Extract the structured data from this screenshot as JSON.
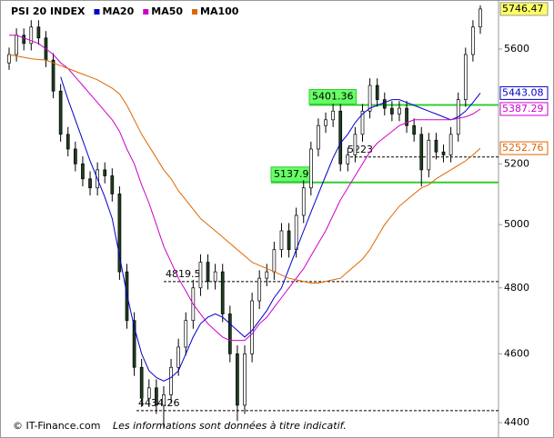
{
  "chart_data": {
    "type": "candlestick",
    "title": "PSI 20 INDEX",
    "footer": {
      "source": "© IT-Finance.com",
      "note": "Les informations sont données à titre indicatif."
    },
    "log_scale": true,
    "ylim": [
      4367,
      5763
    ],
    "yticks": [
      4400,
      4600,
      4800,
      5000,
      5200,
      5600
    ],
    "up_color": "#ffffff",
    "down_color": "#1f3f1f",
    "last_color": "#ffff66",
    "open": [
      5550,
      5580,
      5650,
      5620,
      5680,
      5640,
      5560,
      5450,
      5300,
      5250,
      5200,
      5150,
      5120,
      5180,
      5160,
      5100,
      4850,
      4700,
      4560,
      4470,
      4500,
      4450,
      4480,
      4560,
      4620,
      4700,
      4800,
      4880,
      4820,
      4850,
      4720,
      4600,
      4450,
      4600,
      4760,
      4830,
      4850,
      4920,
      4980,
      4920,
      5030,
      5120,
      5250,
      5330,
      5350,
      5380,
      5200,
      5230,
      5300,
      5380,
      5470,
      5420,
      5390,
      5370,
      5390,
      5330,
      5300,
      5180,
      5280,
      5240,
      5230,
      5300,
      5420,
      5580,
      5680
    ],
    "high": [
      5605,
      5675,
      5675,
      5705,
      5705,
      5665,
      5585,
      5475,
      5325,
      5275,
      5225,
      5175,
      5205,
      5205,
      5185,
      5125,
      4875,
      4725,
      4585,
      4525,
      4525,
      4505,
      4585,
      4645,
      4725,
      4825,
      4905,
      4905,
      4875,
      4875,
      4745,
      4625,
      4625,
      4785,
      4855,
      4875,
      4945,
      5005,
      5005,
      5055,
      5145,
      5275,
      5355,
      5375,
      5405,
      5405,
      5255,
      5325,
      5405,
      5495,
      5495,
      5445,
      5415,
      5415,
      5415,
      5355,
      5325,
      5305,
      5305,
      5265,
      5325,
      5445,
      5605,
      5705,
      5760
    ],
    "low": [
      5525,
      5555,
      5595,
      5595,
      5615,
      5535,
      5425,
      5275,
      5225,
      5175,
      5125,
      5095,
      5095,
      5135,
      5075,
      4825,
      4675,
      4535,
      4445,
      4445,
      4425,
      4385,
      4455,
      4535,
      4595,
      4675,
      4775,
      4795,
      4795,
      4695,
      4575,
      4405,
      4425,
      4575,
      4735,
      4805,
      4825,
      4895,
      4895,
      4895,
      5005,
      5095,
      5225,
      5305,
      5325,
      5175,
      5175,
      5205,
      5275,
      5355,
      5395,
      5365,
      5345,
      5345,
      5305,
      5275,
      5125,
      5155,
      5215,
      5205,
      5205,
      5275,
      5395,
      5555,
      5655
    ],
    "close": [
      5580,
      5650,
      5620,
      5680,
      5640,
      5560,
      5450,
      5300,
      5250,
      5200,
      5150,
      5120,
      5180,
      5160,
      5100,
      4850,
      4700,
      4560,
      4470,
      4500,
      4450,
      4480,
      4560,
      4620,
      4700,
      4800,
      4880,
      4820,
      4850,
      4720,
      4600,
      4450,
      4600,
      4760,
      4830,
      4850,
      4920,
      4980,
      4920,
      5030,
      5120,
      5250,
      5330,
      5350,
      5380,
      5200,
      5230,
      5300,
      5380,
      5470,
      5420,
      5390,
      5370,
      5390,
      5330,
      5300,
      5180,
      5280,
      5240,
      5230,
      5300,
      5420,
      5580,
      5680,
      5746.47
    ],
    "series": [
      {
        "name": "MA20",
        "color": "#0000cc",
        "values": [
          null,
          null,
          null,
          null,
          null,
          null,
          null,
          5500,
          5420,
          5350,
          5280,
          5210,
          5150,
          5090,
          5020,
          4900,
          4780,
          4680,
          4600,
          4550,
          4530,
          4520,
          4530,
          4550,
          4600,
          4650,
          4690,
          4710,
          4720,
          4710,
          4690,
          4670,
          4650,
          4670,
          4700,
          4730,
          4770,
          4800,
          4860,
          4920,
          4980,
          5040,
          5100,
          5160,
          5220,
          5270,
          5300,
          5340,
          5370,
          5390,
          5400,
          5410,
          5420,
          5420,
          5410,
          5400,
          5390,
          5380,
          5370,
          5360,
          5350,
          5360,
          5380,
          5410,
          5443.08
        ]
      },
      {
        "name": "MA50",
        "color": "#cc00cc",
        "values": [
          5650,
          5650,
          5640,
          5630,
          5620,
          5600,
          5580,
          5550,
          5530,
          5500,
          5470,
          5440,
          5410,
          5380,
          5350,
          5310,
          5250,
          5200,
          5130,
          5070,
          5000,
          4930,
          4880,
          4830,
          4790,
          4750,
          4720,
          4690,
          4670,
          4650,
          4640,
          4640,
          4640,
          4660,
          4690,
          4710,
          4740,
          4770,
          4800,
          4830,
          4860,
          4900,
          4940,
          4980,
          5030,
          5080,
          5120,
          5160,
          5200,
          5240,
          5270,
          5290,
          5310,
          5330,
          5340,
          5350,
          5350,
          5350,
          5350,
          5350,
          5350,
          5355,
          5360,
          5370,
          5387.29
        ]
      },
      {
        "name": "MA100",
        "color": "#dd6600",
        "values": [
          5580,
          5575,
          5570,
          5565,
          5562,
          5560,
          5550,
          5540,
          5530,
          5520,
          5510,
          5500,
          5490,
          5475,
          5460,
          5440,
          5400,
          5350,
          5300,
          5260,
          5220,
          5180,
          5150,
          5110,
          5080,
          5050,
          5020,
          5000,
          4980,
          4960,
          4940,
          4920,
          4900,
          4880,
          4870,
          4860,
          4850,
          4840,
          4830,
          4825,
          4820,
          4815,
          4815,
          4820,
          4825,
          4830,
          4850,
          4870,
          4890,
          4920,
          4960,
          5000,
          5030,
          5060,
          5080,
          5100,
          5120,
          5130,
          5150,
          5165,
          5180,
          5195,
          5210,
          5230,
          5252.76
        ]
      }
    ],
    "levels": [
      {
        "value": 5401.36,
        "color": "#33cc33",
        "style": "solid"
      },
      {
        "value": 5137.9,
        "color": "#33cc33",
        "style": "solid"
      },
      {
        "value": 5223,
        "color": "#000000",
        "style": "dashed"
      },
      {
        "value": 4819.5,
        "color": "#000000",
        "style": "dashed"
      },
      {
        "value": 4434.26,
        "color": "#000000",
        "style": "dashed"
      }
    ]
  }
}
